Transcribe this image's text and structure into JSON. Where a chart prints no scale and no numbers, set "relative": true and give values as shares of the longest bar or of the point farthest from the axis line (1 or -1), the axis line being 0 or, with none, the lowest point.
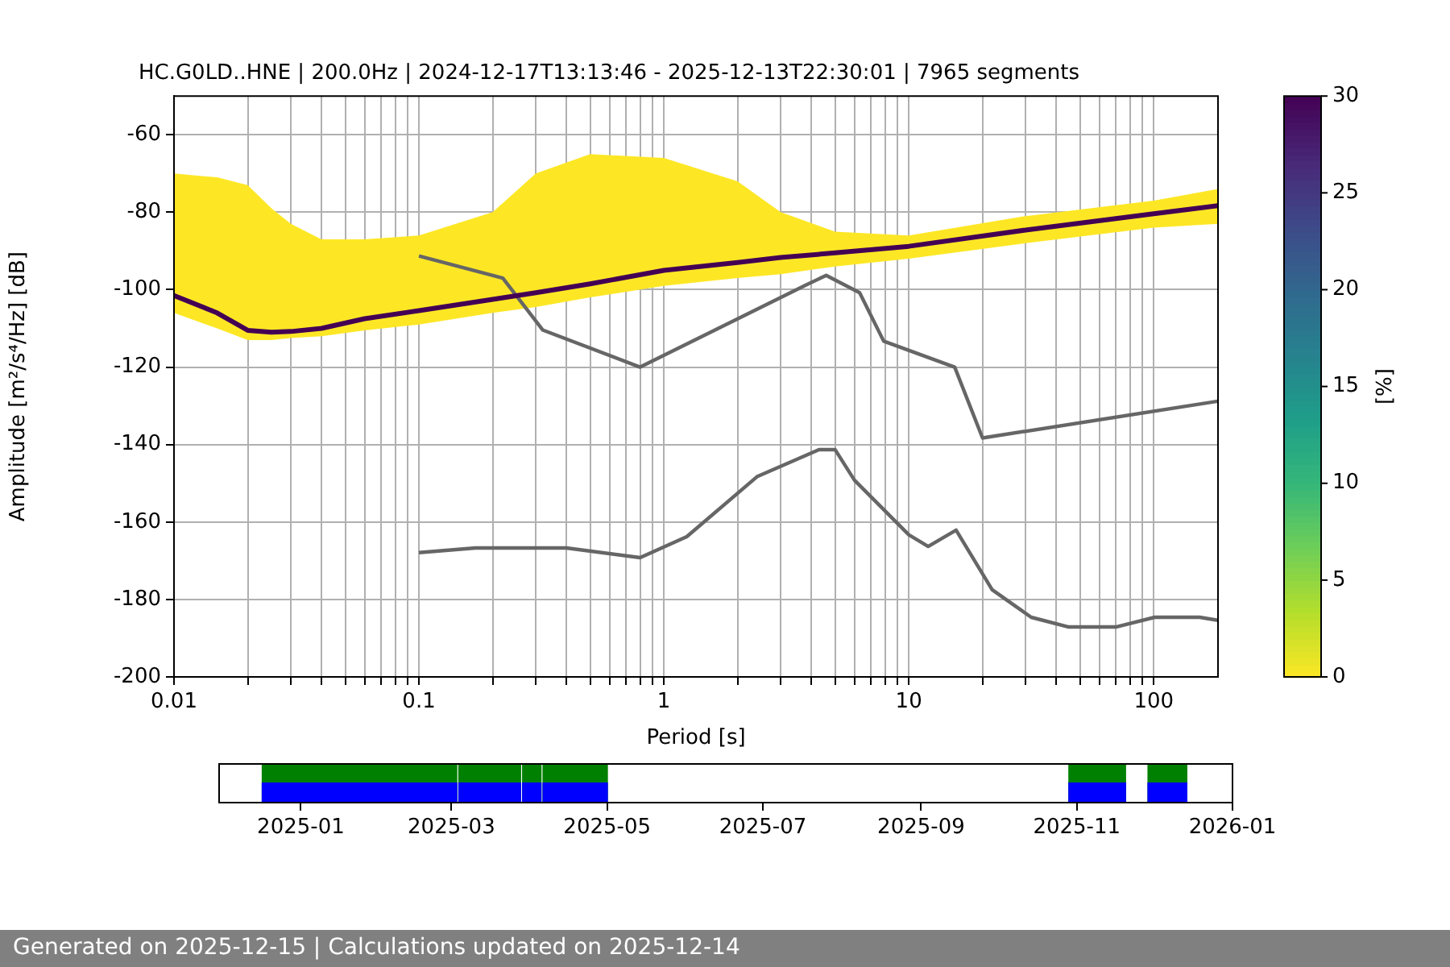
{
  "chart_data": [
    {
      "type": "line",
      "title": "HC.G0LD..HNE | 200.0Hz | 2024-12-17T13:13:46 - 2025-12-13T22:30:01 | 7965 segments",
      "xlabel": "Period [s]",
      "ylabel": "Amplitude [m²/s⁴/Hz] [dB]",
      "clabel": "[%]",
      "clim": [
        0,
        30
      ],
      "cticks": [
        0,
        5,
        10,
        15,
        20,
        25,
        30
      ],
      "log": "x",
      "grid": true,
      "legend": false,
      "marker": "none",
      "line_style": "solid",
      "xlim": [
        0.01,
        183
      ],
      "xticks": [
        0.01,
        {
          "value": 0.02,
          "label": null
        },
        {
          "value": 0.03,
          "label": null
        },
        {
          "value": 0.04,
          "label": null
        },
        {
          "value": 0.05,
          "label": null
        },
        {
          "value": 0.06,
          "label": null
        },
        {
          "value": 0.07,
          "label": null
        },
        {
          "value": 0.08,
          "label": null
        },
        {
          "value": 0.09,
          "label": null
        },
        0.1,
        {
          "value": 0.2,
          "label": null
        },
        {
          "value": 0.3,
          "label": null
        },
        {
          "value": 0.4,
          "label": null
        },
        {
          "value": 0.5,
          "label": null
        },
        {
          "value": 0.6,
          "label": null
        },
        {
          "value": 0.7,
          "label": null
        },
        {
          "value": 0.8,
          "label": null
        },
        {
          "value": 0.9,
          "label": null
        },
        1,
        {
          "value": 2,
          "label": null
        },
        {
          "value": 3,
          "label": null
        },
        {
          "value": 4,
          "label": null
        },
        {
          "value": 5,
          "label": null
        },
        {
          "value": 6,
          "label": null
        },
        {
          "value": 7,
          "label": null
        },
        {
          "value": 8,
          "label": null
        },
        {
          "value": 9,
          "label": null
        },
        10,
        {
          "value": 20,
          "label": null
        },
        {
          "value": 30,
          "label": null
        },
        {
          "value": 40,
          "label": null
        },
        {
          "value": 50,
          "label": null
        },
        {
          "value": 60,
          "label": null
        },
        {
          "value": 70,
          "label": null
        },
        {
          "value": 80,
          "label": null
        },
        {
          "value": 90,
          "label": null
        },
        100
      ],
      "ylim": [
        -200,
        -50
      ],
      "yticks": [
        -200,
        -180,
        -160,
        -140,
        -120,
        -100,
        -80,
        -60
      ],
      "annotations": [
        "Generated on 2025-12-15 | Calculations updated on 2025-12-14"
      ],
      "series": [
        {
          "type": "line",
          "color": "#440154",
          "x": [
            0.01,
            0.015,
            0.02,
            0.025,
            0.03,
            0.04,
            0.06,
            0.1,
            0.2,
            0.3,
            0.5,
            1,
            2,
            3,
            5,
            10,
            30,
            100,
            183
          ],
          "values": [
            -101.5,
            -106,
            -110.5,
            -111,
            -110.8,
            -110,
            -107.5,
            -105.4,
            -102.5,
            -100.8,
            -98.5,
            -95,
            -93,
            -91.7,
            -90.5,
            -88.8,
            -84.6,
            -80.4,
            -78.3
          ],
          "lower": [
            -106,
            -110,
            -113,
            -113,
            -112.5,
            -112,
            -110.5,
            -109,
            -106,
            -104.5,
            -102,
            -99,
            -97,
            -96,
            -94,
            -92,
            -88,
            -84,
            -83
          ],
          "upper": [
            -70,
            -71,
            -73,
            -79,
            -83,
            -87,
            -87,
            -86,
            -80,
            -70,
            -65,
            -66,
            -72,
            -80,
            -85,
            -86,
            -81,
            -77,
            -74
          ]
        },
        {
          "type": "line",
          "color": "#666666",
          "x": [
            0.1,
            0.22,
            0.32,
            0.8,
            3.8,
            4.6,
            6.3,
            7.9,
            15.4,
            20,
            183
          ],
          "values": [
            -91.3,
            -97,
            -110.4,
            -120,
            -98.8,
            -96.3,
            -100.8,
            -113.3,
            -120,
            -138.3,
            -128.8
          ]
        },
        {
          "type": "line",
          "color": "#666666",
          "x": [
            0.1,
            0.17,
            0.4,
            0.8,
            1.24,
            2.4,
            4.3,
            5,
            6,
            10,
            12,
            15.6,
            21.9,
            31.6,
            45,
            70,
            101,
            154,
            183
          ],
          "values": [
            -167.9,
            -166.7,
            -166.7,
            -169.2,
            -163.8,
            -148.3,
            -141.3,
            -141.3,
            -149.2,
            -163.3,
            -166.3,
            -162.1,
            -177.5,
            -184.6,
            -187.1,
            -187.1,
            -184.6,
            -184.6,
            -185.4
          ]
        }
      ]
    },
    {
      "type": "area",
      "relative": true,
      "stacked": true,
      "tick_labels": "x",
      "x": [
        "2024-11-30",
        "2024-12-17",
        "2024-12-17",
        "2025-03-03",
        "2025-03-03",
        "2025-03-04",
        "2025-03-04",
        "2025-03-28",
        "2025-03-28",
        "2025-03-29",
        "2025-03-29",
        "2025-04-05",
        "2025-04-05",
        "2025-04-06",
        "2025-04-06",
        "2025-05-01",
        "2025-05-01",
        "2025-10-29",
        "2025-10-29",
        "2025-11-20",
        "2025-11-20",
        "2025-11-29",
        "2025-11-29",
        "2025-12-14",
        "2025-12-14",
        "2026-01-01"
      ],
      "xlim": [
        "2024-11-30",
        "2026-01-01"
      ],
      "xticks": [
        {
          "value": "2025-01-01",
          "label": "2025-01"
        },
        {
          "value": "2025-03-01",
          "label": "2025-03"
        },
        {
          "value": "2025-05-01",
          "label": "2025-05"
        },
        {
          "value": "2025-07-01",
          "label": "2025-07"
        },
        {
          "value": "2025-09-01",
          "label": "2025-09"
        },
        {
          "value": "2025-11-01",
          "label": "2025-11"
        },
        {
          "value": "2026-01-01",
          "label": "2026-01"
        }
      ],
      "series": [
        {
          "color": "#0000ff",
          "values": [
            0,
            0,
            0.5,
            0.5,
            0,
            0,
            0.5,
            0.5,
            0,
            0,
            0.5,
            0.5,
            0,
            0,
            0.5,
            0.5,
            0,
            0,
            0.5,
            0.5,
            0,
            0,
            0.5,
            0.5,
            0,
            0
          ]
        },
        {
          "color": "#008000",
          "values": [
            0,
            0,
            0.5,
            0.5,
            0,
            0,
            0.5,
            0.5,
            0,
            0,
            0.5,
            0.5,
            0,
            0,
            0.5,
            0.5,
            0,
            0,
            0.5,
            0.5,
            0,
            0,
            0.5,
            0.5,
            0,
            0
          ]
        }
      ]
    }
  ]
}
